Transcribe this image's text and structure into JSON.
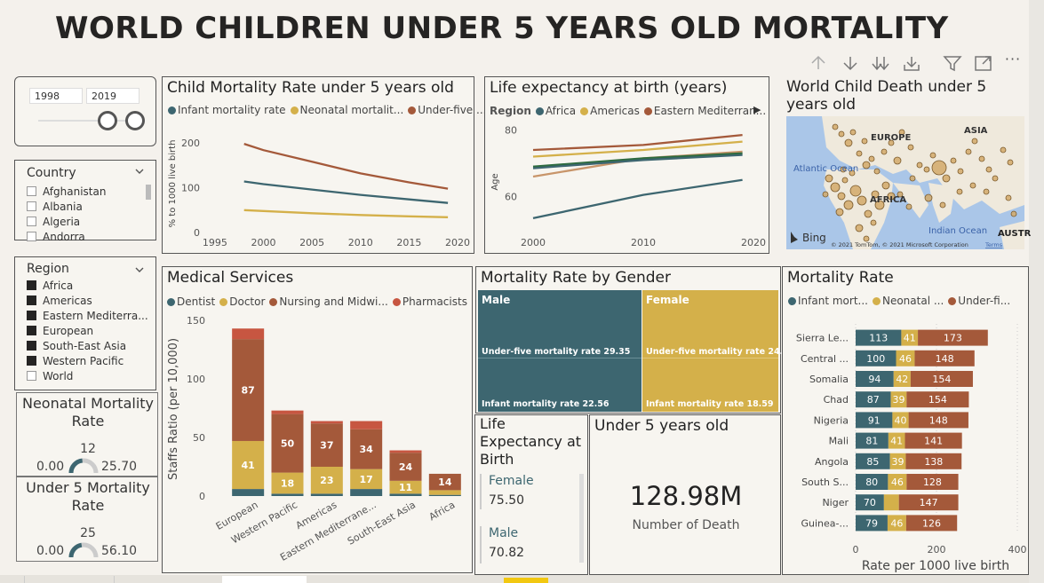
{
  "title": "WORLD CHILDREN UNDER 5 YEARS OLD MORTALITY",
  "toolbar": {
    "icons": [
      "arrow-up-icon",
      "arrow-down-icon",
      "double-down-icon",
      "expand-down-icon",
      "filter-icon",
      "focus-mode-icon",
      "more-options-icon"
    ],
    "more": "···"
  },
  "year_slicer": {
    "from": "1998",
    "to": "2019"
  },
  "country_slicer": {
    "label": "Country",
    "items": [
      "Afghanistan",
      "Albania",
      "Algeria",
      "Andorra"
    ]
  },
  "region_slicer": {
    "label": "Region",
    "items": [
      {
        "label": "Africa",
        "checked": true
      },
      {
        "label": "Americas",
        "checked": true
      },
      {
        "label": "Eastern Mediterra...",
        "checked": true
      },
      {
        "label": "European",
        "checked": true
      },
      {
        "label": "South-East Asia",
        "checked": true
      },
      {
        "label": "Western Pacific",
        "checked": true
      },
      {
        "label": "World",
        "checked": false
      }
    ]
  },
  "neonatal_gauge": {
    "title": "Neonatal Mortality Rate",
    "value": "12",
    "min": "0.00",
    "max": "25.70",
    "fraction": 0.47
  },
  "under5_gauge": {
    "title": "Under 5 Mortality Rate",
    "value": "25",
    "min": "0.00",
    "max": "56.10",
    "fraction": 0.45
  },
  "colors": {
    "teal": "#3d6670",
    "gold": "#d4b04a",
    "rust": "#a4593a",
    "red": "#c75641",
    "green": "#2e6b3f",
    "tan": "#c8956a"
  },
  "child_mortality": {
    "title": "Child Mortality Rate under 5 years old",
    "legend": [
      "Infant mortality rate",
      "Neonatal mortalit...",
      "Under-five ..."
    ],
    "ylabel": "% to 1000 live birth"
  },
  "life_expectancy": {
    "title": "Life expectancy at birth (years)",
    "legend_title": "Region",
    "legend": [
      "Africa",
      "Americas",
      "Eastern Mediterran..."
    ],
    "ylabel": "Age"
  },
  "map": {
    "title": "World Child Death under 5 years old",
    "labels": {
      "europe": "EUROPE",
      "asia": "ASIA",
      "africa": "AFRICA",
      "atlantic": "Atlantic Ocean",
      "indian": "Indian Ocean",
      "austr": "AUSTR"
    },
    "bing": "Bing",
    "copyright": "© 2021 TomTom, © 2021 Microsoft Corporation",
    "terms": "Terms"
  },
  "medical": {
    "title": "Medical Services",
    "legend": [
      "Dentist",
      "Doctor",
      "Nursing and Midwi...",
      "Pharmacists"
    ],
    "ylabel": "Staffs Ratio (per 10,000)"
  },
  "gender": {
    "title": "Mortality Rate by Gender",
    "male": "Male",
    "female": "Female",
    "male_u5": "Under-five mortality rate 29.35",
    "male_inf": "Infant mortality rate 22.56",
    "female_u5": "Under-five mortality rate 24...",
    "female_inf": "Infant mortality rate 18.59"
  },
  "life_exp_card": {
    "title": "Life Expectancy at Birth",
    "female_label": "Female",
    "female_value": "75.50",
    "male_label": "Male",
    "male_value": "70.82"
  },
  "under5_card": {
    "title": "Under 5 years old",
    "value": "128.98M",
    "label": "Number of Death"
  },
  "mortality_rate": {
    "title": "Mortality Rate",
    "legend": [
      "Infant mort...",
      "Neonatal ...",
      "Under-fi..."
    ],
    "xlabel": "Rate per 1000 live birth"
  },
  "chart_data": [
    {
      "type": "line",
      "title": "Child Mortality Rate under 5 years old",
      "ylabel": "% to 1000 live birth",
      "x": [
        1998,
        2000,
        2005,
        2010,
        2015,
        2019
      ],
      "series": [
        {
          "name": "Infant mortality rate",
          "color": "#3d6670",
          "values": [
            114,
            108,
            96,
            84,
            74,
            66
          ]
        },
        {
          "name": "Neonatal mortalit...",
          "color": "#d4b04a",
          "values": [
            50,
            48,
            43,
            39,
            36,
            34
          ]
        },
        {
          "name": "Under-five ...",
          "color": "#a4593a",
          "values": [
            198,
            184,
            158,
            132,
            112,
            98
          ]
        }
      ],
      "xticks": [
        1995,
        2000,
        2005,
        2010,
        2015,
        2020
      ],
      "yticks": [
        0,
        100,
        200
      ],
      "ylim": [
        0,
        220
      ],
      "xlim": [
        1994,
        2020
      ]
    },
    {
      "type": "line",
      "title": "Life expectancy at birth (years)",
      "ylabel": "Age",
      "x": [
        2000,
        2010,
        2019
      ],
      "series": [
        {
          "name": "Africa",
          "color": "#3d6670",
          "values": [
            53.5,
            60.5,
            65
          ]
        },
        {
          "name": "Americas",
          "color": "#d4b04a",
          "values": [
            72,
            74,
            76.5
          ]
        },
        {
          "name": "Eastern Mediterran...",
          "color": "#a4593a",
          "values": [
            74,
            75.5,
            78.5
          ]
        },
        {
          "name": "",
          "color": "#c8956a",
          "values": [
            66,
            71.5,
            73.5
          ]
        },
        {
          "name": "",
          "color": "#2e6b3f",
          "values": [
            69,
            71.5,
            73
          ]
        },
        {
          "name": "",
          "color": "#3d6670",
          "values": [
            68.5,
            71,
            72.5
          ]
        }
      ],
      "xticks": [
        2000,
        2010,
        2020
      ],
      "yticks": [
        60,
        80
      ],
      "ylim": [
        50,
        82
      ],
      "xlim": [
        2000,
        2020
      ]
    },
    {
      "type": "bar",
      "title": "Medical Services",
      "ylabel": "Staffs Ratio (per 10,000)",
      "categories": [
        "European",
        "Western Pacific",
        "Americas",
        "Eastern Mediterrane...",
        "South-East Asia",
        "Africa"
      ],
      "series": [
        {
          "name": "Dentist",
          "color": "#3d6670",
          "values": [
            6,
            2,
            2,
            6,
            2,
            1
          ],
          "labels": [
            "",
            "",
            "",
            "",
            "",
            ""
          ]
        },
        {
          "name": "Doctor",
          "color": "#d4b04a",
          "values": [
            41,
            18,
            23,
            17,
            11,
            4
          ],
          "labels": [
            "41",
            "18",
            "23",
            "17",
            "11",
            ""
          ]
        },
        {
          "name": "Nursing and Midwi...",
          "color": "#a4593a",
          "values": [
            87,
            50,
            37,
            34,
            24,
            14
          ],
          "labels": [
            "87",
            "50",
            "37",
            "34",
            "24",
            "14"
          ]
        },
        {
          "name": "Pharmacists",
          "color": "#c75641",
          "values": [
            9,
            3,
            2,
            7,
            2,
            0
          ],
          "labels": [
            "",
            "",
            "",
            "",
            "",
            ""
          ]
        }
      ],
      "yticks": [
        0,
        50,
        100,
        150
      ],
      "ylim": [
        0,
        150
      ]
    },
    {
      "type": "bar",
      "orientation": "horizontal",
      "title": "Mortality Rate",
      "xlabel": "Rate per 1000 live birth",
      "categories": [
        "Sierra Le...",
        "Central ...",
        "Somalia",
        "Chad",
        "Nigeria",
        "Mali",
        "Angola",
        "South S...",
        "Niger",
        "Guinea-..."
      ],
      "series": [
        {
          "name": "Infant mort...",
          "color": "#3d6670",
          "values": [
            113,
            100,
            94,
            87,
            91,
            81,
            85,
            80,
            70,
            79
          ]
        },
        {
          "name": "Neonatal ...",
          "color": "#d4b04a",
          "values": [
            41,
            46,
            42,
            39,
            40,
            41,
            39,
            46,
            37,
            46
          ]
        },
        {
          "name": "Under-fi...",
          "color": "#a4593a",
          "values": [
            173,
            148,
            154,
            154,
            148,
            141,
            138,
            128,
            147,
            126
          ]
        }
      ],
      "labels": [
        [
          "113",
          "41",
          "173"
        ],
        [
          "100",
          "46",
          "148"
        ],
        [
          "94",
          "42",
          "154"
        ],
        [
          "87",
          "39",
          "154"
        ],
        [
          "91",
          "40",
          "148"
        ],
        [
          "81",
          "41",
          "141"
        ],
        [
          "85",
          "39",
          "138"
        ],
        [
          "80",
          "46",
          "128"
        ],
        [
          "70",
          "",
          "147"
        ],
        [
          "79",
          "46",
          "126"
        ]
      ],
      "xticks": [
        0,
        200,
        400
      ],
      "xlim": [
        0,
        400
      ]
    }
  ]
}
